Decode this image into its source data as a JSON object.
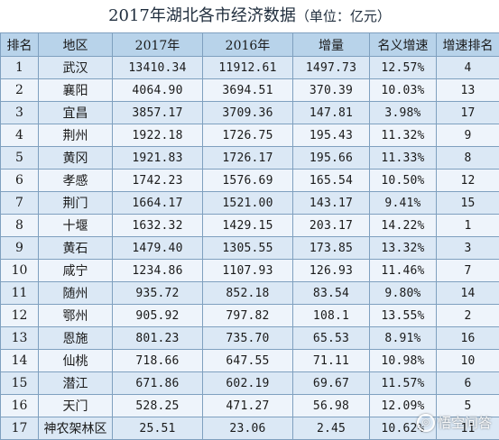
{
  "title": {
    "main": "2017年湖北各市经济数据",
    "unit": "（单位：亿元）"
  },
  "table": {
    "headers": [
      "排名",
      "地区",
      "2017年",
      "2016年",
      "增量",
      "名义增速",
      "增速排名"
    ],
    "rows": [
      [
        "1",
        "武汉",
        "13410.34",
        "11912.61",
        "1497.73",
        "12.57%",
        "4"
      ],
      [
        "2",
        "襄阳",
        "4064.90",
        "3694.51",
        "370.39",
        "10.03%",
        "13"
      ],
      [
        "3",
        "宜昌",
        "3857.17",
        "3709.36",
        "147.81",
        "3.98%",
        "17"
      ],
      [
        "4",
        "荆州",
        "1922.18",
        "1726.75",
        "195.43",
        "11.32%",
        "9"
      ],
      [
        "5",
        "黄冈",
        "1921.83",
        "1726.17",
        "195.66",
        "11.33%",
        "8"
      ],
      [
        "6",
        "孝感",
        "1742.23",
        "1576.69",
        "165.54",
        "10.50%",
        "12"
      ],
      [
        "7",
        "荆门",
        "1664.17",
        "1521.00",
        "143.17",
        "9.41%",
        "15"
      ],
      [
        "8",
        "十堰",
        "1632.32",
        "1429.15",
        "203.17",
        "14.22%",
        "1"
      ],
      [
        "9",
        "黄石",
        "1479.40",
        "1305.55",
        "173.85",
        "13.32%",
        "3"
      ],
      [
        "10",
        "咸宁",
        "1234.86",
        "1107.93",
        "126.93",
        "11.46%",
        "7"
      ],
      [
        "11",
        "随州",
        "935.72",
        "852.18",
        "83.54",
        "9.80%",
        "14"
      ],
      [
        "12",
        "鄂州",
        "905.92",
        "797.82",
        "108.1",
        "13.55%",
        "2"
      ],
      [
        "13",
        "恩施",
        "801.23",
        "735.70",
        "65.53",
        "8.91%",
        "16"
      ],
      [
        "14",
        "仙桃",
        "718.66",
        "647.55",
        "71.11",
        "10.98%",
        "10"
      ],
      [
        "15",
        "潜江",
        "671.86",
        "602.19",
        "69.67",
        "11.57%",
        "6"
      ],
      [
        "16",
        "天门",
        "528.25",
        "471.27",
        "56.98",
        "12.09%",
        "5"
      ],
      [
        "17",
        "神农架林区",
        "25.51",
        "23.06",
        "2.45",
        "10.62%",
        "11"
      ]
    ]
  },
  "watermark": {
    "text": "悟空问答",
    "icon": "wukong-logo-icon"
  }
}
